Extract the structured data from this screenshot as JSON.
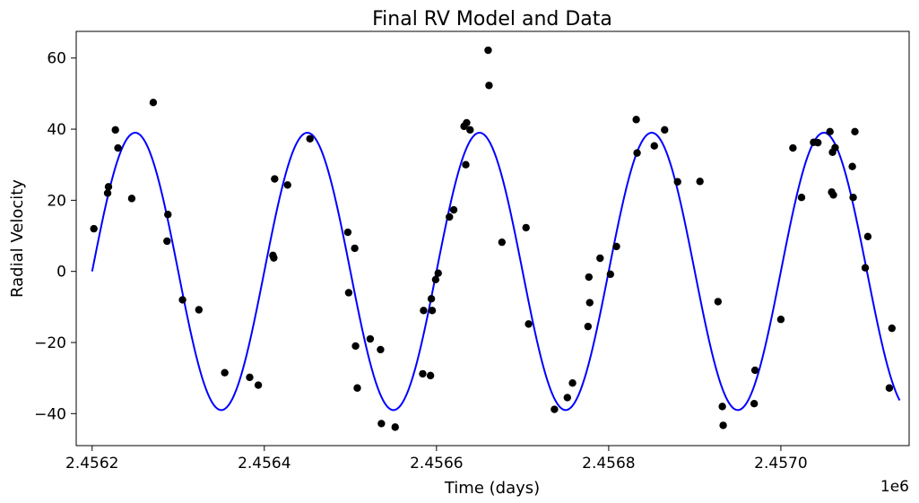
{
  "chart_data": {
    "type": "scatter",
    "title": "Final RV Model and Data",
    "xlabel": "Time (days)",
    "ylabel": "Radial Velocity",
    "x_offset_label": "1e6",
    "x_scale": 1000000,
    "xlim": [
      2456181.5,
      2457149
    ],
    "ylim": [
      -49,
      67.5
    ],
    "xticks": [
      {
        "value": 2456200,
        "label": "2.4562"
      },
      {
        "value": 2456400,
        "label": "2.4564"
      },
      {
        "value": 2456600,
        "label": "2.4566"
      },
      {
        "value": 2456800,
        "label": "2.4568"
      },
      {
        "value": 2457000,
        "label": "2.4570"
      }
    ],
    "yticks": [
      {
        "value": 60,
        "label": "60"
      },
      {
        "value": 40,
        "label": "40"
      },
      {
        "value": 20,
        "label": "20"
      },
      {
        "value": 0,
        "label": "0"
      },
      {
        "value": -20,
        "label": "−20"
      },
      {
        "value": -40,
        "label": "−40"
      }
    ],
    "grid": false,
    "legend": "none",
    "series": [
      {
        "kind": "model_line",
        "color": "#0000ff",
        "model": {
          "amplitude": 39,
          "period": 200,
          "peak_time": 2456250,
          "x_start": 2456200,
          "x_end": 2457138
        }
      },
      {
        "kind": "data_points",
        "color": "#000000",
        "points": [
          [
            2456202,
            12
          ],
          [
            2456218,
            22
          ],
          [
            2456219,
            23.8
          ],
          [
            2456227,
            39.8
          ],
          [
            2456230,
            34.7
          ],
          [
            2456246,
            20.5
          ],
          [
            2456271,
            47.5
          ],
          [
            2456287,
            8.5
          ],
          [
            2456288,
            16
          ],
          [
            2456305,
            -8
          ],
          [
            2456324,
            -10.8
          ],
          [
            2456354,
            -28.5
          ],
          [
            2456383,
            -29.8
          ],
          [
            2456393,
            -32
          ],
          [
            2456410,
            4.5
          ],
          [
            2456411,
            3.8
          ],
          [
            2456412,
            26
          ],
          [
            2456427,
            24.3
          ],
          [
            2456453,
            37.3
          ],
          [
            2456497,
            11
          ],
          [
            2456498,
            -6
          ],
          [
            2456505,
            6.5
          ],
          [
            2456506,
            -21
          ],
          [
            2456508,
            -32.8
          ],
          [
            2456523,
            -19
          ],
          [
            2456535,
            -22
          ],
          [
            2456536,
            -42.8
          ],
          [
            2456552,
            -43.8
          ],
          [
            2456584,
            -28.8
          ],
          [
            2456585,
            -11
          ],
          [
            2456593,
            -29.3
          ],
          [
            2456594,
            -7.7
          ],
          [
            2456595,
            -11
          ],
          [
            2456599,
            -2.3
          ],
          [
            2456602,
            -0.5
          ],
          [
            2456615,
            15.3
          ],
          [
            2456620,
            17.3
          ],
          [
            2456632,
            40.8
          ],
          [
            2456635,
            41.8
          ],
          [
            2456634,
            30
          ],
          [
            2456639,
            39.8
          ],
          [
            2456660,
            62.2
          ],
          [
            2456661,
            52.3
          ],
          [
            2456676,
            8.2
          ],
          [
            2456704,
            12.3
          ],
          [
            2456707,
            -14.8
          ],
          [
            2456737,
            -38.8
          ],
          [
            2456752,
            -35.5
          ],
          [
            2456758,
            -31.4
          ],
          [
            2456776,
            -15.5
          ],
          [
            2456777,
            -1.6
          ],
          [
            2456778,
            -8.8
          ],
          [
            2456790,
            3.7
          ],
          [
            2456802,
            -0.8
          ],
          [
            2456809,
            7
          ],
          [
            2456832,
            42.7
          ],
          [
            2456833,
            33.3
          ],
          [
            2456853,
            35.3
          ],
          [
            2456865,
            39.8
          ],
          [
            2456880,
            25.2
          ],
          [
            2456906,
            25.3
          ],
          [
            2456927,
            -8.5
          ],
          [
            2456932,
            -38
          ],
          [
            2456933,
            -43.3
          ],
          [
            2456969,
            -37.2
          ],
          [
            2456970,
            -27.8
          ],
          [
            2457000,
            -13.5
          ],
          [
            2457014,
            34.7
          ],
          [
            2457024,
            20.8
          ],
          [
            2457038,
            36.3
          ],
          [
            2457043,
            36.2
          ],
          [
            2457057,
            39.3
          ],
          [
            2457059,
            22.3
          ],
          [
            2457060,
            33.5
          ],
          [
            2457061,
            21.5
          ],
          [
            2457063,
            34.8
          ],
          [
            2457083,
            29.5
          ],
          [
            2457084,
            20.8
          ],
          [
            2457086,
            39.3
          ],
          [
            2457098,
            1
          ],
          [
            2457101,
            9.8
          ],
          [
            2457126,
            -32.8
          ],
          [
            2457129,
            -16
          ]
        ]
      }
    ]
  }
}
